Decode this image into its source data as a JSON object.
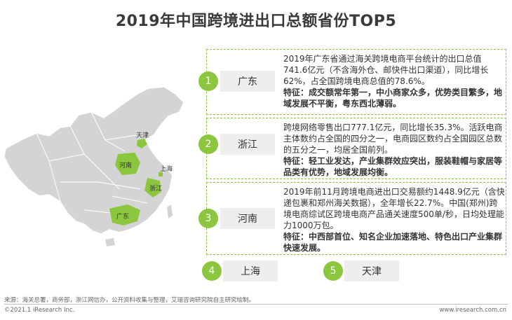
{
  "title": "2019年中国跨境进出口总额省份TOP5",
  "accent_color": "#8cc63f",
  "map": {
    "labels": [
      "天津",
      "河南",
      "上海",
      "浙江",
      "广东"
    ],
    "highlighted": [
      "天津",
      "河南",
      "上海",
      "浙江",
      "广东"
    ]
  },
  "chart_data": {
    "type": "table",
    "title": "2019年中国跨境进出口总额省份TOP5",
    "ranking": [
      {
        "rank": "1",
        "province": "广东",
        "description": "2019年广东省通过海关跨境电商平台统计的出口总值741.6亿元（不含海外仓、邮快件出口渠道），同比增长62%，占全国跨境电商总值的78.6%。",
        "feature": "特征：成交额常年第一，中小商家众多，优势类目繁多，地域发展不平衡，粤东西北薄弱。"
      },
      {
        "rank": "2",
        "province": "浙江",
        "description": "跨境网络零售出口777.1亿元，同比增长35.3%。活跃电商主体数约占全国的四分之一，电商园区数约占全国园区总数的五分之一，均居全国前列。",
        "feature": "特征：轻工业发达，产业集群效应突出，服装鞋帽与家居等品类有优势，地域发展均衡。"
      },
      {
        "rank": "3",
        "province": "河南",
        "description": "2019年前11月跨境电商进出口交易额约1448.9亿元（含快递包裹和郑州海关数据），全年增长22.7%。中国(郑州)跨境电商综试区跨境电商产品通关速度500单/秒，日均处理能力1000万包。",
        "feature": "特征：中西部首位、知名企业加速落地、特色出口产业集群快速发展。"
      },
      {
        "rank": "4",
        "province": "上海"
      },
      {
        "rank": "5",
        "province": "天津"
      }
    ]
  },
  "footer": {
    "source": "来源：海关总署，商务部，浙江网信办，公开资料收集与整理，艾瑞咨询研究院自主研究绘制。",
    "copyright": "©2021.1 iResearch Inc.",
    "website": "www.iresearch.com.cn"
  }
}
